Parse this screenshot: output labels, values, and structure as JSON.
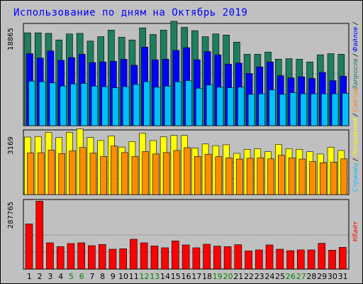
{
  "window": {
    "title": "Использование по дням на Октябрь 2019"
  },
  "chart_data": {
    "type": "bar",
    "title": "Использование по дням на Октябрь 2019",
    "categories": [
      "1",
      "2",
      "3",
      "4",
      "5",
      "6",
      "7",
      "8",
      "9",
      "10",
      "11",
      "12",
      "13",
      "14",
      "15",
      "16",
      "17",
      "18",
      "19",
      "20",
      "21",
      "22",
      "23",
      "24",
      "25",
      "26",
      "27",
      "28",
      "29",
      "30",
      "31"
    ],
    "weekend_days": [
      "5",
      "6",
      "12",
      "13",
      "19",
      "20",
      "26",
      "27"
    ],
    "panels": [
      {
        "id": "top",
        "ymax": 18865,
        "ymax_label": "18865",
        "series": [
          {
            "name": "Запросов",
            "color": "#1e7e5e",
            "values": [
              16900,
              16900,
              16800,
              15600,
              16700,
              16800,
              15400,
              16200,
              17400,
              16100,
              15600,
              17800,
              16600,
              17400,
              19000,
              17900,
              17300,
              16200,
              16700,
              16500,
              15200,
              13000,
              13000,
              13400,
              12100,
              12200,
              12100,
              11600,
              12900,
              13100,
              13000
            ]
          },
          {
            "name": "Файлов",
            "color": "#0000ff",
            "values": [
              13100,
              12300,
              13600,
              11900,
              12400,
              13000,
              11500,
              11600,
              11700,
              12100,
              11000,
              14300,
              12000,
              12100,
              13700,
              14200,
              12000,
              13500,
              12900,
              11200,
              11400,
              9500,
              10700,
              11600,
              9100,
              8700,
              8900,
              8600,
              9700,
              8200,
              9000
            ]
          },
          {
            "name": "Страниц",
            "color": "#00bfff",
            "values": [
              8100,
              8000,
              7800,
              7200,
              7600,
              7700,
              7200,
              7100,
              6900,
              7100,
              7500,
              8000,
              7000,
              7200,
              8000,
              8200,
              6800,
              7400,
              7000,
              6900,
              7000,
              5700,
              5800,
              6500,
              5700,
              6000,
              5800,
              5800,
              5800,
              5800,
              5900
            ]
          }
        ]
      },
      {
        "id": "middle",
        "ymax": 3169,
        "ymax_label": "3169",
        "series": [
          {
            "name": "Посещений",
            "color": "#ffff00",
            "values": [
              2820,
              2850,
              3050,
              2800,
              3050,
              3220,
              2800,
              2650,
              2880,
              2330,
              2600,
              3000,
              2650,
              2830,
              2900,
              2900,
              2280,
              2480,
              2400,
              2440,
              2020,
              2220,
              2240,
              2100,
              2460,
              2250,
              2220,
              2100,
              1990,
              2320,
              2160
            ]
          },
          {
            "name": "Сайтов",
            "color": "#ff8c00",
            "values": [
              2040,
              2050,
              2180,
              2010,
              2140,
              2310,
              2030,
              1870,
              2380,
              2060,
              1870,
              2110,
              1990,
              2060,
              2160,
              2300,
              1870,
              1980,
              1860,
              1800,
              1740,
              1780,
              1800,
              1750,
              1930,
              1800,
              1740,
              1620,
              1560,
              1580,
              1750
            ]
          }
        ]
      },
      {
        "id": "bottom",
        "ymax": 287765,
        "ymax_label": "287765",
        "series": [
          {
            "name": "Кбайт",
            "color": "#ff0000",
            "values": [
              191000,
              287000,
              111000,
              95000,
              108000,
              111000,
              99000,
              104000,
              84000,
              86000,
              126000,
              111000,
              98000,
              90000,
              119000,
              102000,
              90000,
              105000,
              97000,
              95000,
              103000,
              77000,
              81000,
              102000,
              84000,
              78000,
              81000,
              81000,
              109000,
              80000,
              92000
            ]
          }
        ]
      }
    ],
    "side_label_top": {
      "parts": [
        {
          "text": "Запросов",
          "color": "#1e7e5e"
        },
        {
          "text": " / ",
          "color": "#000000"
        },
        {
          "text": "Файлов",
          "color": "#0000ff"
        },
        {
          "text": " / ",
          "color": "#000000"
        }
      ]
    },
    "side_label_middle": {
      "parts": [
        {
          "text": "Страниц",
          "color": "#00bfff"
        },
        {
          "text": " / ",
          "color": "#000000"
        },
        {
          "text": "Посещений",
          "color": "#ffff00"
        },
        {
          "text": " / ",
          "color": "#000000"
        },
        {
          "text": "Сайтов",
          "color": "#ff8c00"
        }
      ]
    },
    "side_label_bottom": {
      "parts": [
        {
          "text": "Кбайт",
          "color": "#ff0000"
        }
      ]
    },
    "colors": {
      "weekday_tick": "#000000",
      "weekend_tick": "#008000",
      "panel_bg": "#c0c0c0",
      "grid": "#000000"
    }
  }
}
